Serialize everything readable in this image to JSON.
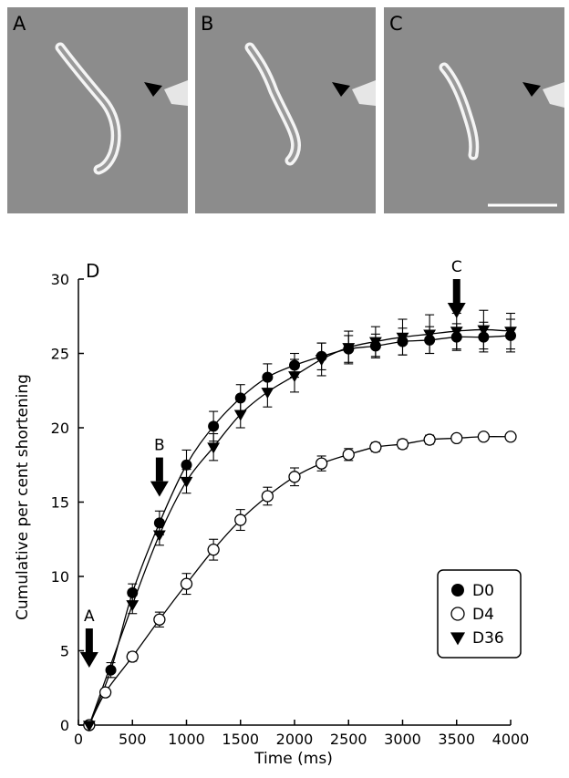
{
  "panels": [
    {
      "label": "A"
    },
    {
      "label": "B"
    },
    {
      "label": "C"
    }
  ],
  "chart_data": {
    "type": "line",
    "panel_label": "D",
    "xlabel": "Time (ms)",
    "ylabel": "Cumulative per cent shortening",
    "xlim": [
      0,
      4000
    ],
    "ylim": [
      0,
      30
    ],
    "xticks": [
      0,
      500,
      1000,
      1500,
      2000,
      2500,
      3000,
      3500,
      4000
    ],
    "yticks": [
      0,
      5,
      10,
      15,
      20,
      25,
      30
    ],
    "grid": false,
    "legend_position": "bottom-right",
    "series": [
      {
        "name": "D0",
        "marker": "filled-circle",
        "x": [
          100,
          300,
          500,
          750,
          1000,
          1250,
          1500,
          1750,
          2000,
          2250,
          2500,
          2750,
          3000,
          3250,
          3500,
          3750,
          4000
        ],
        "y": [
          0,
          3.7,
          8.9,
          13.6,
          17.5,
          20.1,
          22.0,
          23.4,
          24.2,
          24.8,
          25.3,
          25.5,
          25.8,
          25.9,
          26.1,
          26.1,
          26.2
        ],
        "err": [
          0.2,
          0.5,
          0.6,
          0.8,
          1.0,
          1.0,
          0.9,
          0.9,
          0.8,
          0.9,
          0.9,
          0.8,
          0.9,
          0.9,
          0.9,
          1.0,
          1.1
        ]
      },
      {
        "name": "D4",
        "marker": "open-circle",
        "x": [
          100,
          250,
          500,
          750,
          1000,
          1250,
          1500,
          1750,
          2000,
          2250,
          2500,
          2750,
          3000,
          3250,
          3500,
          3750,
          4000
        ],
        "y": [
          0,
          2.2,
          4.6,
          7.1,
          9.5,
          11.8,
          13.8,
          15.4,
          16.7,
          17.6,
          18.2,
          18.7,
          18.9,
          19.2,
          19.3,
          19.4,
          19.4
        ],
        "err": [
          0.1,
          0.2,
          0.3,
          0.5,
          0.7,
          0.7,
          0.7,
          0.6,
          0.6,
          0.5,
          0.4,
          0.3,
          0.3,
          0.3,
          0.2,
          0.2,
          0.2
        ]
      },
      {
        "name": "D36",
        "marker": "filled-triangle-down",
        "x": [
          100,
          500,
          750,
          1000,
          1250,
          1500,
          1750,
          2000,
          2250,
          2500,
          2750,
          3000,
          3250,
          3500,
          3750,
          4000
        ],
        "y": [
          0,
          8.1,
          12.8,
          16.4,
          18.7,
          20.9,
          22.4,
          23.5,
          24.6,
          25.4,
          25.8,
          26.1,
          26.3,
          26.5,
          26.6,
          26.5
        ],
        "err": [
          0.2,
          0.6,
          0.7,
          0.8,
          0.9,
          0.9,
          1.0,
          1.1,
          1.1,
          1.1,
          1.0,
          1.2,
          1.3,
          1.2,
          1.3,
          1.2
        ]
      }
    ],
    "annotations": [
      {
        "label": "A",
        "x": 100,
        "type": "down-arrow"
      },
      {
        "label": "B",
        "x": 750,
        "type": "down-arrow"
      },
      {
        "label": "C",
        "x": 3500,
        "type": "down-arrow"
      }
    ]
  }
}
